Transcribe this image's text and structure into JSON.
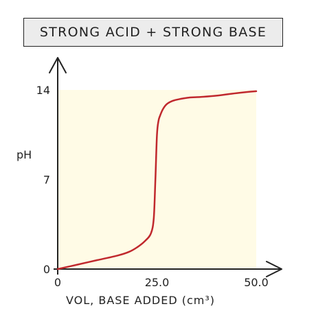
{
  "chart_data": {
    "type": "line",
    "title": "STRONG ACID + STRONG BASE",
    "xlabel": "VOL, BASE ADDED (cm³)",
    "ylabel": "pH",
    "xlim": [
      0,
      50
    ],
    "ylim": [
      0,
      14
    ],
    "x_ticks": [
      "0",
      "25.0",
      "50.0"
    ],
    "y_ticks": [
      "0",
      "7",
      "14"
    ],
    "grid": false,
    "series": [
      {
        "x": [
          0,
          5,
          10,
          15,
          18,
          20,
          22,
          23.5,
          24.2,
          24.6,
          25,
          25.4,
          25.8,
          26.5,
          27.5,
          29,
          31,
          33,
          36,
          40,
          45,
          50
        ],
        "y": [
          0,
          0.35,
          0.7,
          1.05,
          1.35,
          1.7,
          2.2,
          2.8,
          4,
          7,
          10.5,
          11.6,
          12,
          12.5,
          12.9,
          13.15,
          13.3,
          13.4,
          13.45,
          13.55,
          13.75,
          13.9
        ]
      }
    ],
    "colors": {
      "line": "#c0282d",
      "plot_background": "#fffbe6",
      "axis": "#222222"
    }
  }
}
